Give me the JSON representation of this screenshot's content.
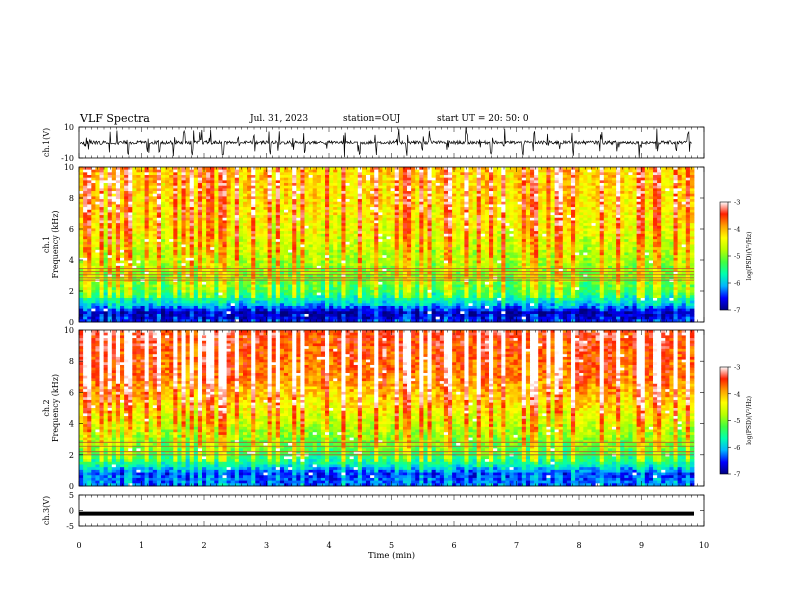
{
  "header": {
    "title": "VLF Spectra",
    "date": "Jul. 31, 2023",
    "station": "station=OUJ",
    "start": "start UT = 20: 50: 0"
  },
  "colors": {
    "colormap": [
      "#000080",
      "#0000ff",
      "#00b4ff",
      "#00ffb0",
      "#40ff40",
      "#b8ff00",
      "#ffff00",
      "#ffa000",
      "#ff2000",
      "#ffffff"
    ]
  },
  "chart_data": [
    {
      "type": "line",
      "name": "ch1-waveform",
      "ylabel": "ch.1(V)",
      "ylim": [
        -10,
        10
      ],
      "yticks": [
        "10",
        "-10"
      ],
      "xlim": [
        0,
        10
      ],
      "baseline": 0,
      "spikes_min": [
        0.1,
        0.16,
        0.36,
        0.5,
        0.62,
        0.78,
        1.1,
        1.28,
        1.52,
        1.68,
        1.82,
        1.95,
        2.1,
        2.3,
        2.55,
        2.8,
        3.05,
        3.2,
        3.42,
        3.6,
        3.95,
        4.25,
        4.48,
        4.75,
        5.1,
        5.25,
        5.5,
        5.62,
        5.9,
        6.2,
        6.42,
        6.6,
        6.8,
        7.1,
        7.28,
        7.5,
        7.68,
        7.9,
        8.35,
        8.62,
        8.98,
        9.25,
        9.55,
        9.75
      ]
    },
    {
      "type": "heatmap",
      "name": "ch1-spectrogram",
      "ylabel": "ch.1 Frequency (kHz)",
      "ylim": [
        0,
        10
      ],
      "yticks": [
        "0",
        "2",
        "4",
        "6",
        "8",
        "10"
      ],
      "xlim": [
        0,
        9.84
      ],
      "colorbar": {
        "label": "log(PSD)(V²/Hz)",
        "range": [
          -7,
          -3
        ],
        "ticks": [
          "-3",
          "-4",
          "-5",
          "-6",
          "-7"
        ]
      },
      "band_profile_khz": [
        [
          0,
          -6.6
        ],
        [
          0.6,
          -6.9
        ],
        [
          1.2,
          -6.0
        ],
        [
          2.0,
          -5.3
        ],
        [
          3.0,
          -5.0
        ],
        [
          4.0,
          -4.8
        ],
        [
          6.0,
          -4.4
        ],
        [
          8.0,
          -4.2
        ],
        [
          10,
          -4.1
        ]
      ],
      "lines_khz": [
        2.7,
        2.85,
        3.05,
        3.25,
        3.45
      ]
    },
    {
      "type": "heatmap",
      "name": "ch2-spectrogram",
      "ylabel": "ch.2 Frequency (kHz)",
      "ylim": [
        0,
        10
      ],
      "yticks": [
        "0",
        "2",
        "4",
        "6",
        "8",
        "10"
      ],
      "xlim": [
        0,
        9.84
      ],
      "colorbar": {
        "label": "log(PSD)(V²/Hz)",
        "range": [
          -7,
          -3
        ],
        "ticks": [
          "-3",
          "-4",
          "-5",
          "-6",
          "-7"
        ]
      },
      "band_profile_khz": [
        [
          0,
          -6.3
        ],
        [
          0.8,
          -6.5
        ],
        [
          1.5,
          -5.6
        ],
        [
          2.5,
          -5.1
        ],
        [
          3.5,
          -4.8
        ],
        [
          5.0,
          -4.3
        ],
        [
          7.0,
          -3.7
        ],
        [
          10,
          -3.4
        ]
      ],
      "lines_khz": [
        2.0,
        2.2,
        2.55,
        2.8
      ]
    },
    {
      "type": "line",
      "name": "ch3-signal",
      "ylabel": "ch.3(V)",
      "ylim": [
        -5,
        5
      ],
      "yticks": [
        "5",
        "0",
        "-5"
      ],
      "xlim": [
        0,
        10
      ],
      "level": -1
    }
  ],
  "x_axis": {
    "label": "Time (min)",
    "ticks": [
      "0",
      "1",
      "2",
      "3",
      "4",
      "5",
      "6",
      "7",
      "8",
      "9",
      "10"
    ],
    "range": [
      0,
      10
    ]
  }
}
